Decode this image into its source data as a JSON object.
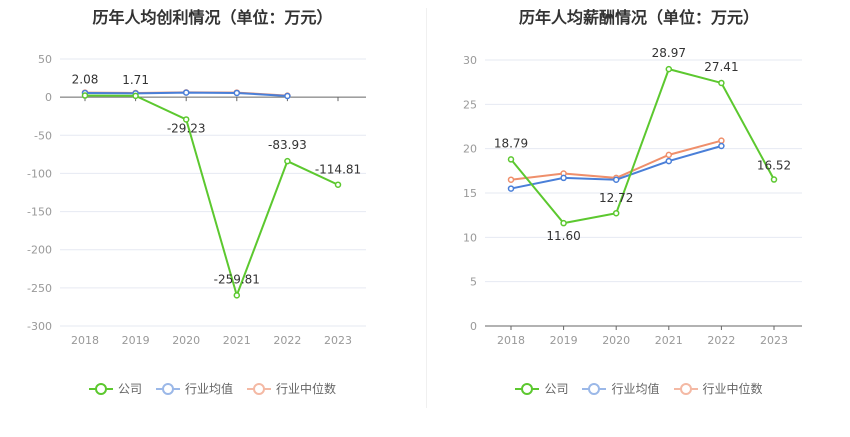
{
  "legend": {
    "company": "公司",
    "industry_avg": "行业均值",
    "industry_median": "行业中位数"
  },
  "colors": {
    "company": "#5cc82f",
    "industry_avg": "#4a7fd8",
    "industry_median": "#ef8f6b"
  },
  "chart_data": [
    {
      "type": "line",
      "title": "历年人均创利情况（单位：万元）",
      "categories": [
        "2018",
        "2019",
        "2020",
        "2021",
        "2022",
        "2023"
      ],
      "yticks": [
        "50",
        "0",
        "-50",
        "-100",
        "-150",
        "-200",
        "-250",
        "-300"
      ],
      "ylim": [
        -300,
        50
      ],
      "grid": true,
      "legend_position": "bottom",
      "series": [
        {
          "name": "公司",
          "values": [
            2.08,
            1.71,
            -29.23,
            -259.81,
            -83.93,
            -114.81
          ],
          "labels": [
            "2.08",
            "1.71",
            "-29.23",
            "-259.81",
            "-83.93",
            "-114.81"
          ]
        },
        {
          "name": "行业均值",
          "values": [
            5.5,
            5.0,
            6.0,
            5.5,
            1.5,
            null
          ]
        },
        {
          "name": "行业中位数",
          "values": [
            6.0,
            5.5,
            6.2,
            6.0,
            2.0,
            null
          ]
        }
      ]
    },
    {
      "type": "line",
      "title": "历年人均薪酬情况（单位：万元）",
      "categories": [
        "2018",
        "2019",
        "2020",
        "2021",
        "2022",
        "2023"
      ],
      "yticks": [
        "30",
        "25",
        "20",
        "15",
        "10",
        "5",
        "0"
      ],
      "ylim": [
        0,
        30
      ],
      "grid": true,
      "legend_position": "bottom",
      "series": [
        {
          "name": "公司",
          "values": [
            18.79,
            11.6,
            12.72,
            28.97,
            27.41,
            16.52
          ],
          "labels": [
            "18.79",
            "11.60",
            "12.72",
            "28.97",
            "27.41",
            "16.52"
          ]
        },
        {
          "name": "行业均值",
          "values": [
            15.5,
            16.7,
            16.5,
            18.6,
            20.3,
            null
          ]
        },
        {
          "name": "行业中位数",
          "values": [
            16.5,
            17.2,
            16.7,
            19.3,
            20.9,
            null
          ]
        }
      ]
    }
  ]
}
